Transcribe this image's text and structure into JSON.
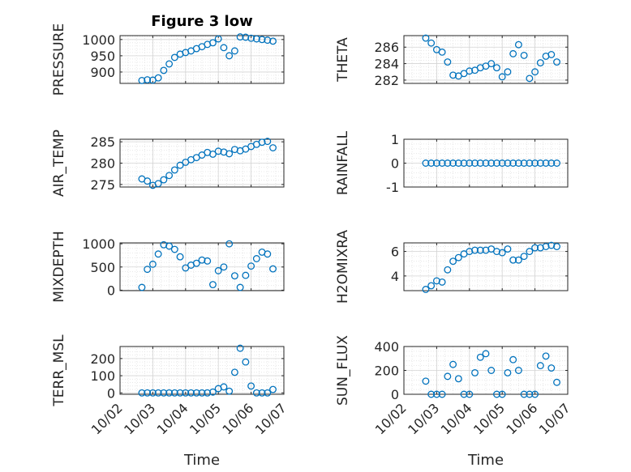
{
  "chart_data": [
    {
      "type": "scatter",
      "title": "Figure 3 low",
      "ylabel": "PRESSURE",
      "ylim": [
        865,
        1012
      ],
      "yticks": [
        900,
        950,
        1000
      ],
      "ytick_labels": [
        "900",
        "950",
        "1000"
      ],
      "grid": true,
      "x": [
        "10/02 16:00",
        "10/02 20:00",
        "10/03 00:00",
        "10/03 04:00",
        "10/03 08:00",
        "10/03 12:00",
        "10/03 16:00",
        "10/03 20:00",
        "10/04 00:00",
        "10/04 04:00",
        "10/04 08:00",
        "10/04 12:00",
        "10/04 16:00",
        "10/04 20:00",
        "10/05 00:00",
        "10/05 04:00",
        "10/05 08:00",
        "10/05 12:00",
        "10/05 16:00",
        "10/05 20:00",
        "10/06 00:00",
        "10/06 04:00",
        "10/06 08:00",
        "10/06 12:00",
        "10/06 16:00"
      ],
      "values": [
        874,
        876,
        875,
        882,
        905,
        925,
        945,
        955,
        960,
        965,
        972,
        978,
        985,
        990,
        1002,
        975,
        950,
        965,
        1008,
        1007,
        1004,
        1002,
        1000,
        998,
        995
      ]
    },
    {
      "type": "scatter",
      "ylabel": "THETA",
      "ylim": [
        281.6,
        287.4
      ],
      "yticks": [
        282,
        284,
        286
      ],
      "ytick_labels": [
        "282",
        "284",
        "286"
      ],
      "grid": true,
      "x": [
        "10/02 16:00",
        "10/02 20:00",
        "10/03 00:00",
        "10/03 04:00",
        "10/03 08:00",
        "10/03 12:00",
        "10/03 16:00",
        "10/03 20:00",
        "10/04 00:00",
        "10/04 04:00",
        "10/04 08:00",
        "10/04 12:00",
        "10/04 16:00",
        "10/04 20:00",
        "10/05 00:00",
        "10/05 04:00",
        "10/05 08:00",
        "10/05 12:00",
        "10/05 16:00",
        "10/05 20:00",
        "10/06 00:00",
        "10/06 04:00",
        "10/06 08:00",
        "10/06 12:00",
        "10/06 16:00"
      ],
      "values": [
        287.1,
        286.5,
        285.7,
        285.4,
        284.2,
        282.6,
        282.5,
        282.8,
        283.1,
        283.2,
        283.5,
        283.7,
        284.0,
        283.5,
        282.4,
        283.0,
        285.2,
        286.3,
        285.0,
        282.2,
        283.0,
        284.1,
        284.9,
        285.1,
        284.2
      ]
    },
    {
      "type": "scatter",
      "ylabel": "AIR_TEMP",
      "ylim": [
        274.4,
        285.6
      ],
      "yticks": [
        275,
        280,
        285
      ],
      "ytick_labels": [
        "275",
        "280",
        "285"
      ],
      "grid": true,
      "x": [
        "10/02 16:00",
        "10/02 20:00",
        "10/03 00:00",
        "10/03 04:00",
        "10/03 08:00",
        "10/03 12:00",
        "10/03 16:00",
        "10/03 20:00",
        "10/04 00:00",
        "10/04 04:00",
        "10/04 08:00",
        "10/04 12:00",
        "10/04 16:00",
        "10/04 20:00",
        "10/05 00:00",
        "10/05 04:00",
        "10/05 08:00",
        "10/05 12:00",
        "10/05 16:00",
        "10/05 20:00",
        "10/06 00:00",
        "10/06 04:00",
        "10/06 08:00",
        "10/06 12:00",
        "10/06 16:00"
      ],
      "values": [
        276.3,
        275.8,
        274.8,
        275.2,
        276.1,
        277.1,
        278.4,
        279.5,
        280.2,
        280.8,
        281.3,
        281.9,
        282.5,
        282.1,
        282.8,
        282.6,
        282.2,
        283.2,
        282.9,
        283.3,
        283.9,
        284.4,
        284.9,
        285.1,
        283.6
      ]
    },
    {
      "type": "scatter",
      "ylabel": "RAINFALL",
      "ylim": [
        -1,
        1
      ],
      "yticks": [
        -1,
        0,
        1
      ],
      "ytick_labels": [
        "-1",
        "0",
        "1"
      ],
      "grid": true,
      "x": [
        "10/02 16:00",
        "10/02 20:00",
        "10/03 00:00",
        "10/03 04:00",
        "10/03 08:00",
        "10/03 12:00",
        "10/03 16:00",
        "10/03 20:00",
        "10/04 00:00",
        "10/04 04:00",
        "10/04 08:00",
        "10/04 12:00",
        "10/04 16:00",
        "10/04 20:00",
        "10/05 00:00",
        "10/05 04:00",
        "10/05 08:00",
        "10/05 12:00",
        "10/05 16:00",
        "10/05 20:00",
        "10/06 00:00",
        "10/06 04:00",
        "10/06 08:00",
        "10/06 12:00",
        "10/06 16:00"
      ],
      "values": [
        0,
        0,
        0,
        0,
        0,
        0,
        0,
        0,
        0,
        0,
        0,
        0,
        0,
        0,
        0,
        0,
        0,
        0,
        0,
        0,
        0,
        0,
        0,
        0,
        0
      ]
    },
    {
      "type": "scatter",
      "ylabel": "MIXDEPTH",
      "ylim": [
        -10,
        1020
      ],
      "yticks": [
        0,
        500,
        1000
      ],
      "ytick_labels": [
        "0",
        "500",
        "1000"
      ],
      "grid": true,
      "x": [
        "10/02 16:00",
        "10/02 20:00",
        "10/03 00:00",
        "10/03 04:00",
        "10/03 08:00",
        "10/03 12:00",
        "10/03 16:00",
        "10/03 20:00",
        "10/04 00:00",
        "10/04 04:00",
        "10/04 08:00",
        "10/04 12:00",
        "10/04 16:00",
        "10/04 20:00",
        "10/05 00:00",
        "10/05 04:00",
        "10/05 08:00",
        "10/05 12:00",
        "10/05 16:00",
        "10/05 20:00",
        "10/06 00:00",
        "10/06 04:00",
        "10/06 08:00",
        "10/06 12:00",
        "10/06 16:00"
      ],
      "values": [
        60,
        450,
        560,
        780,
        980,
        950,
        880,
        720,
        480,
        540,
        580,
        650,
        630,
        120,
        420,
        500,
        1000,
        310,
        60,
        320,
        520,
        680,
        820,
        780,
        460
      ]
    },
    {
      "type": "scatter",
      "ylabel": "H2OMIXRA",
      "ylim": [
        2.8,
        6.7
      ],
      "yticks": [
        4,
        6
      ],
      "ytick_labels": [
        "4",
        "6"
      ],
      "grid": true,
      "x": [
        "10/02 16:00",
        "10/02 20:00",
        "10/03 00:00",
        "10/03 04:00",
        "10/03 08:00",
        "10/03 12:00",
        "10/03 16:00",
        "10/03 20:00",
        "10/04 00:00",
        "10/04 04:00",
        "10/04 08:00",
        "10/04 12:00",
        "10/04 16:00",
        "10/04 20:00",
        "10/05 00:00",
        "10/05 04:00",
        "10/05 08:00",
        "10/05 12:00",
        "10/05 16:00",
        "10/05 20:00",
        "10/06 00:00",
        "10/06 04:00",
        "10/06 08:00",
        "10/06 12:00",
        "10/06 16:00"
      ],
      "values": [
        2.9,
        3.2,
        3.6,
        3.5,
        4.5,
        5.2,
        5.5,
        5.8,
        6.0,
        6.1,
        6.1,
        6.1,
        6.2,
        6.0,
        5.9,
        6.2,
        5.3,
        5.3,
        5.6,
        6.0,
        6.3,
        6.3,
        6.4,
        6.5,
        6.4
      ]
    },
    {
      "type": "scatter",
      "ylabel": "TERR_MSL",
      "ylim": [
        -8,
        270
      ],
      "yticks": [
        0,
        100,
        200
      ],
      "ytick_labels": [
        "0",
        "100",
        "200"
      ],
      "grid": true,
      "x": [
        "10/02 16:00",
        "10/02 20:00",
        "10/03 00:00",
        "10/03 04:00",
        "10/03 08:00",
        "10/03 12:00",
        "10/03 16:00",
        "10/03 20:00",
        "10/04 00:00",
        "10/04 04:00",
        "10/04 08:00",
        "10/04 12:00",
        "10/04 16:00",
        "10/04 20:00",
        "10/05 00:00",
        "10/05 04:00",
        "10/05 08:00",
        "10/05 12:00",
        "10/05 16:00",
        "10/05 20:00",
        "10/06 00:00",
        "10/06 04:00",
        "10/06 08:00",
        "10/06 12:00",
        "10/06 16:00"
      ],
      "values": [
        0,
        0,
        0,
        0,
        0,
        0,
        0,
        0,
        0,
        0,
        0,
        0,
        0,
        5,
        25,
        35,
        10,
        120,
        260,
        180,
        40,
        0,
        0,
        0,
        20
      ],
      "xticks": [
        "10/02",
        "10/03",
        "10/04",
        "10/05",
        "10/06",
        "10/07"
      ],
      "xlabel": "Time"
    },
    {
      "type": "scatter",
      "ylabel": "SUN_FLUX",
      "ylim": [
        0,
        400
      ],
      "yticks": [
        0,
        200,
        400
      ],
      "ytick_labels": [
        "0",
        "200",
        "400"
      ],
      "grid": true,
      "x": [
        "10/02 16:00",
        "10/02 20:00",
        "10/03 00:00",
        "10/03 04:00",
        "10/03 08:00",
        "10/03 12:00",
        "10/03 16:00",
        "10/03 20:00",
        "10/04 00:00",
        "10/04 04:00",
        "10/04 08:00",
        "10/04 12:00",
        "10/04 16:00",
        "10/04 20:00",
        "10/05 00:00",
        "10/05 04:00",
        "10/05 08:00",
        "10/05 12:00",
        "10/05 16:00",
        "10/05 20:00",
        "10/06 00:00",
        "10/06 04:00",
        "10/06 08:00",
        "10/06 12:00",
        "10/06 16:00"
      ],
      "values": [
        110,
        0,
        0,
        0,
        150,
        250,
        130,
        0,
        0,
        180,
        310,
        340,
        200,
        0,
        0,
        180,
        290,
        200,
        0,
        0,
        0,
        240,
        320,
        220,
        100
      ],
      "xticks": [
        "10/02",
        "10/03",
        "10/04",
        "10/05",
        "10/06",
        "10/07"
      ],
      "xlabel": "Time"
    }
  ]
}
